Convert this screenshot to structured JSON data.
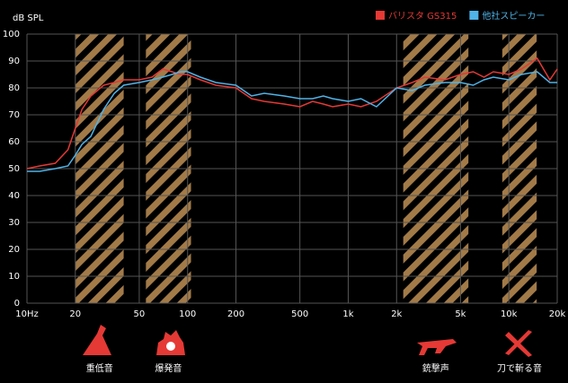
{
  "chart_data": {
    "type": "line",
    "y_label": "dB SPL",
    "log_x": true,
    "grid": true,
    "legend": "top-right",
    "xlim": [
      10,
      20000
    ],
    "ylim": [
      0,
      100
    ],
    "xticks": [
      {
        "value": 10,
        "label": "10Hz"
      },
      20,
      50,
      100,
      200,
      500,
      {
        "value": 1000,
        "label": "1k"
      },
      {
        "value": 2000,
        "label": "2k"
      },
      {
        "value": 5000,
        "label": "5k"
      },
      {
        "value": 10000,
        "label": "10k"
      },
      {
        "value": 20000,
        "label": "20k"
      }
    ],
    "yticks": [
      0,
      10,
      20,
      30,
      40,
      50,
      60,
      70,
      80,
      90,
      100
    ],
    "x": [
      10,
      12,
      15,
      18,
      20,
      22,
      25,
      30,
      35,
      40,
      50,
      60,
      70,
      80,
      90,
      100,
      120,
      150,
      200,
      250,
      300,
      400,
      500,
      600,
      700,
      800,
      1000,
      1200,
      1500,
      2000,
      2500,
      3000,
      4000,
      5000,
      6000,
      7000,
      8000,
      10000,
      12000,
      15000,
      18000,
      20000
    ],
    "series": [
      {
        "name": "バリスタ GS315",
        "color": "#e53935",
        "values": [
          50,
          51,
          52,
          57,
          65,
          72,
          77,
          81,
          82,
          83,
          83,
          84,
          87,
          86,
          85,
          85,
          83,
          81,
          80,
          76,
          75,
          74,
          73,
          75,
          74,
          73,
          74,
          73,
          75,
          80,
          82,
          84,
          83,
          85,
          86,
          84,
          86,
          85,
          87,
          91,
          83,
          87
        ]
      },
      {
        "name": "他社スピーカー",
        "color": "#4fb3e8",
        "values": [
          49,
          49,
          50,
          51,
          55,
          59,
          62,
          72,
          78,
          81,
          82,
          83,
          84,
          85,
          86,
          86,
          84,
          82,
          81,
          77,
          78,
          77,
          76,
          76,
          77,
          76,
          75,
          76,
          73,
          80,
          79,
          81,
          82,
          82,
          81,
          83,
          84,
          83,
          85,
          86,
          82,
          82
        ]
      }
    ],
    "bands": [
      {
        "label": "重低音",
        "range": [
          20,
          40
        ]
      },
      {
        "label": "爆発音",
        "range": [
          55,
          105
        ]
      },
      {
        "label": "銃撃声",
        "range": [
          2200,
          5600
        ]
      },
      {
        "label": "刀で斬る音",
        "range": [
          9100,
          14900
        ]
      }
    ]
  }
}
